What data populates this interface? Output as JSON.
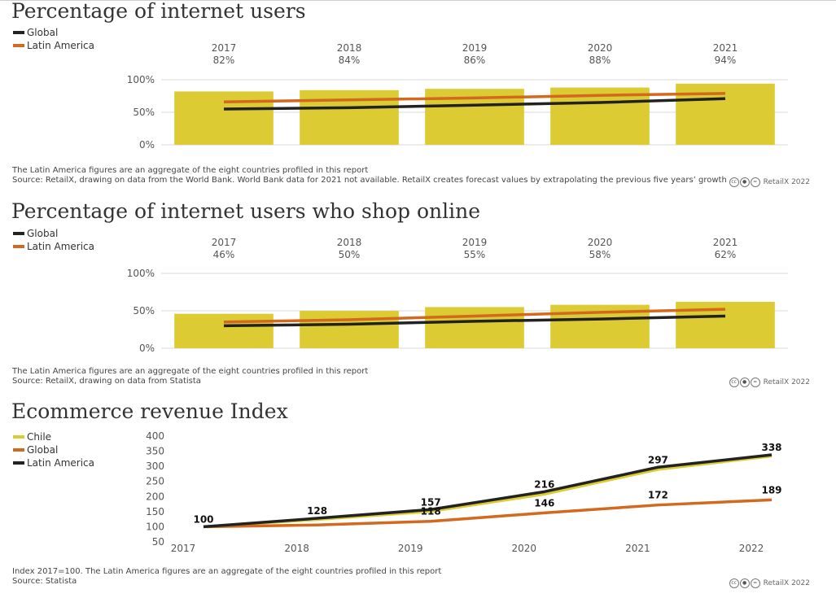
{
  "colors": {
    "bar": "#dccb32",
    "global": "#d2691e",
    "latam": "#222222",
    "chile": "#dccb32"
  },
  "charts": [
    {
      "title": "Percentage of internet users",
      "legend": [
        {
          "name": "Global",
          "color": "#222222"
        },
        {
          "name": "Latin America",
          "color": "#d2691e"
        }
      ],
      "notes": [
        "The Latin America figures are an aggregate of the eight countries profiled in this report",
        "Source: RetailX, drawing on data from the World Bank. World Bank data for 2021 not available. RetailX creates forecast values by extrapolating the previous five years’ growth"
      ],
      "credit": "RetailX 2022"
    },
    {
      "title": "Percentage of internet users who shop online",
      "legend": [
        {
          "name": "Global",
          "color": "#222222"
        },
        {
          "name": "Latin America",
          "color": "#d2691e"
        }
      ],
      "notes": [
        "The Latin America figures are an aggregate of the eight countries profiled in this report",
        "Source: RetailX, drawing on data from Statista"
      ],
      "credit": "RetailX 2022"
    },
    {
      "title": "Ecommerce revenue Index",
      "legend": [
        {
          "name": "Chile",
          "color": "#dccb32"
        },
        {
          "name": "Global",
          "color": "#d2691e"
        },
        {
          "name": "Latin America",
          "color": "#222222"
        }
      ],
      "notes": [
        "Index 2017=100. The Latin America figures are an aggregate of the eight countries profiled in this report",
        "Source: Statista"
      ],
      "credit": "RetailX 2022"
    }
  ],
  "chart_data": [
    {
      "type": "bar",
      "title": "Percentage of internet users",
      "categories": [
        "2017",
        "2018",
        "2019",
        "2020",
        "2021"
      ],
      "bar_labels": [
        "82%",
        "84%",
        "86%",
        "88%",
        "94%"
      ],
      "ylim": [
        0,
        100
      ],
      "yticks": [
        0,
        50,
        100
      ],
      "ytick_labels": [
        "0%",
        "50%",
        "100%"
      ],
      "series": [
        {
          "name": "Bars",
          "kind": "bar",
          "values": [
            82,
            84,
            86,
            88,
            94
          ]
        },
        {
          "name": "Global",
          "kind": "line",
          "values": [
            55,
            57,
            61,
            65,
            71
          ]
        },
        {
          "name": "Latin America",
          "kind": "line",
          "values": [
            66,
            69,
            72,
            76,
            79
          ]
        }
      ]
    },
    {
      "type": "bar",
      "title": "Percentage of internet users who shop online",
      "categories": [
        "2017",
        "2018",
        "2019",
        "2020",
        "2021"
      ],
      "bar_labels": [
        "46%",
        "50%",
        "55%",
        "58%",
        "62%"
      ],
      "ylim": [
        0,
        100
      ],
      "yticks": [
        0,
        50,
        100
      ],
      "ytick_labels": [
        "0%",
        "50%",
        "100%"
      ],
      "series": [
        {
          "name": "Bars",
          "kind": "bar",
          "values": [
            46,
            50,
            55,
            58,
            62
          ]
        },
        {
          "name": "Global",
          "kind": "line",
          "values": [
            30,
            32,
            36,
            39,
            43
          ]
        },
        {
          "name": "Latin America",
          "kind": "line",
          "values": [
            35,
            38,
            43,
            48,
            52
          ]
        }
      ]
    },
    {
      "type": "line",
      "title": "Ecommerce revenue Index",
      "x": [
        "2017",
        "2018",
        "2019",
        "2020",
        "2021",
        "2022"
      ],
      "ylim": [
        50,
        400
      ],
      "yticks": [
        50,
        100,
        150,
        200,
        250,
        300,
        350,
        400
      ],
      "series": [
        {
          "name": "Chile",
          "values": [
            100,
            124,
            151,
            208,
            290,
            334
          ]
        },
        {
          "name": "Global",
          "values": [
            100,
            106,
            118,
            146,
            172,
            189
          ]
        },
        {
          "name": "Latin America",
          "values": [
            100,
            128,
            157,
            216,
            297,
            338
          ]
        }
      ],
      "point_labels": [
        {
          "series": "Latin America",
          "labels": [
            "100",
            "128",
            "157",
            "216",
            "297",
            "338"
          ]
        },
        {
          "series": "Global",
          "labels": [
            "",
            "",
            "118",
            "146",
            "172",
            "189"
          ]
        }
      ]
    }
  ]
}
